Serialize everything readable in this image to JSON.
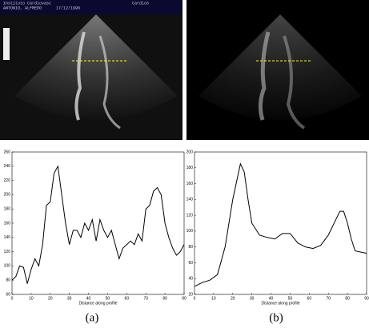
{
  "images": [
    {
      "header": [
        "Instituto Cardiovasc",
        "ANTONIO, ALFREDO",
        "17/12/1998",
        "CardioS"
      ]
    }
  ],
  "chart_data": [
    {
      "type": "line",
      "xlabel": "Distance along profile",
      "color": "#000000",
      "x": [
        0,
        2,
        4,
        6,
        8,
        10,
        12,
        14,
        16,
        18,
        20,
        22,
        24,
        26,
        28,
        30,
        32,
        34,
        36,
        38,
        40,
        42,
        44,
        46,
        48,
        50,
        52,
        54,
        56,
        58,
        60,
        62,
        64,
        66,
        68,
        70,
        72,
        74,
        76,
        78,
        80,
        82,
        84,
        86,
        88,
        90
      ],
      "values": [
        80,
        85,
        100,
        98,
        75,
        95,
        110,
        100,
        130,
        185,
        190,
        230,
        240,
        200,
        160,
        130,
        150,
        150,
        140,
        160,
        150,
        165,
        135,
        165,
        150,
        140,
        150,
        130,
        110,
        125,
        130,
        135,
        130,
        145,
        135,
        180,
        185,
        205,
        210,
        200,
        160,
        140,
        125,
        115,
        120,
        130
      ],
      "xlim": [
        0,
        90
      ],
      "xticks": [
        0,
        10,
        20,
        30,
        40,
        50,
        60,
        70,
        80,
        90
      ],
      "ylim": [
        60,
        260
      ],
      "yticks": [
        60,
        80,
        100,
        120,
        140,
        160,
        180,
        200,
        220,
        240,
        260
      ]
    },
    {
      "type": "line",
      "xlabel": "Distance along profile",
      "color": "#000000",
      "x": [
        0,
        4,
        8,
        12,
        16,
        20,
        24,
        26,
        28,
        30,
        34,
        38,
        42,
        46,
        50,
        54,
        58,
        62,
        66,
        70,
        74,
        76,
        78,
        80,
        82,
        84,
        88,
        90
      ],
      "values": [
        30,
        35,
        38,
        45,
        80,
        140,
        185,
        175,
        140,
        110,
        95,
        92,
        90,
        97,
        97,
        85,
        80,
        78,
        82,
        95,
        115,
        125,
        125,
        110,
        90,
        75,
        73,
        72
      ],
      "xlim": [
        0,
        90
      ],
      "xticks": [
        0,
        10,
        20,
        30,
        40,
        50,
        60,
        70,
        80,
        90
      ],
      "ylim": [
        20,
        200
      ],
      "yticks": [
        20,
        40,
        60,
        80,
        100,
        120,
        140,
        160,
        180,
        200
      ]
    }
  ],
  "captions": [
    "(a)",
    "(b)"
  ]
}
